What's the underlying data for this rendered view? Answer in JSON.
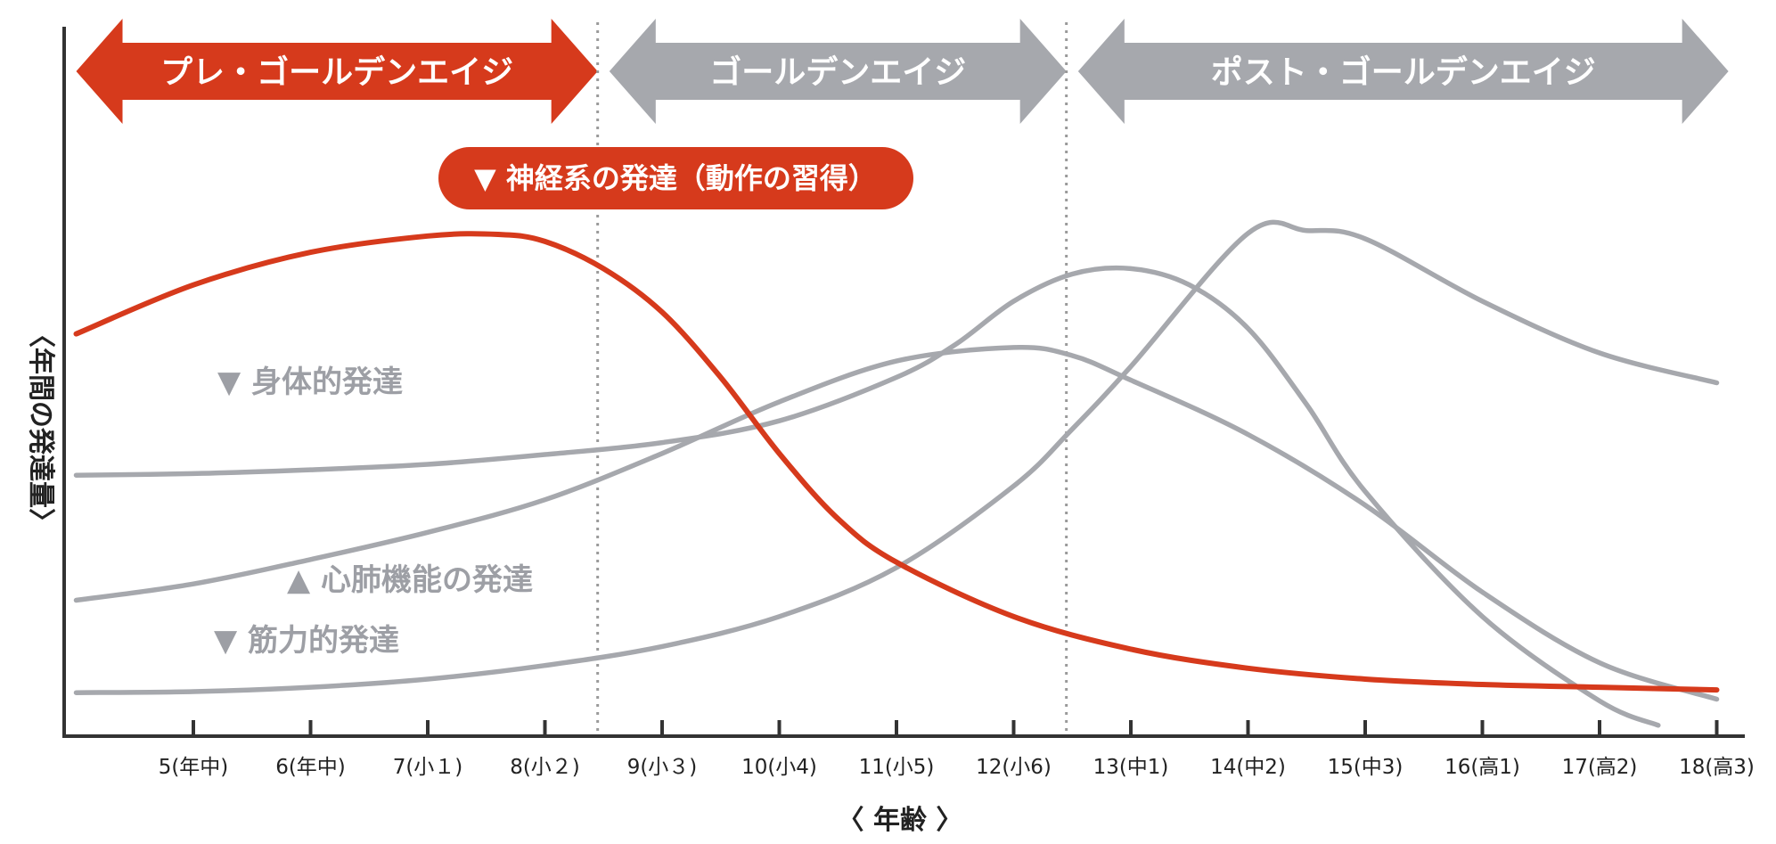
{
  "chart_data": {
    "type": "line",
    "xlabel": "〈 年齢 〉",
    "ylabel": "〈年間の発達量〉",
    "x": [
      4,
      5,
      6,
      7,
      8,
      9,
      10,
      11,
      12,
      13,
      14,
      15,
      16,
      17,
      18
    ],
    "xlim": [
      3.5,
      18.5
    ],
    "ylim": [
      0,
      100
    ],
    "ticks": [
      {
        "x": 5,
        "label": "5(年中)"
      },
      {
        "x": 6,
        "label": "6(年中)"
      },
      {
        "x": 7,
        "label": "7(小１)"
      },
      {
        "x": 8,
        "label": "8(小２)"
      },
      {
        "x": 9,
        "label": "9(小３)"
      },
      {
        "x": 10,
        "label": "10(小4)"
      },
      {
        "x": 11,
        "label": "11(小5)"
      },
      {
        "x": 12,
        "label": "12(小6)"
      },
      {
        "x": 13,
        "label": "13(中1)"
      },
      {
        "x": 14,
        "label": "14(中2)"
      },
      {
        "x": 15,
        "label": "15(中3)"
      },
      {
        "x": 16,
        "label": "16(高1)"
      },
      {
        "x": 17,
        "label": "17(高2)"
      },
      {
        "x": 18,
        "label": "18(高3)"
      }
    ],
    "phases": [
      {
        "label": "プレ・ゴールデンエイジ",
        "x_start": 4,
        "x_end": 8.45,
        "color": "#d63a1c"
      },
      {
        "label": "ゴールデンエイジ",
        "x_start": 8.55,
        "x_end": 12.45,
        "color": "#a6a8ad"
      },
      {
        "label": "ポスト・ゴールデンエイジ",
        "x_start": 12.55,
        "x_end": 18.1,
        "color": "#a6a8ad"
      }
    ],
    "dividers": [
      8.45,
      12.45
    ],
    "series": [
      {
        "name": "神経系の発達（動作の習得）",
        "color": "#d63a1c",
        "x": [
          4,
          5,
          6,
          7,
          7.6,
          8,
          8.5,
          9,
          9.5,
          10,
          10.5,
          11,
          12,
          13,
          14,
          15,
          16,
          17,
          18
        ],
        "y": [
          74,
          83,
          89,
          92,
          92.3,
          91,
          86,
          78,
          66,
          52,
          40,
          32,
          22,
          16,
          12.5,
          10.5,
          9.5,
          9,
          8.5
        ]
      },
      {
        "name": "身体的発達",
        "color": "#a6a8ad",
        "x": [
          4,
          5,
          6,
          7,
          8,
          9,
          10,
          11,
          11.5,
          12,
          12.5,
          13,
          13.5,
          14,
          14.5,
          15,
          16,
          17,
          17.5
        ],
        "y": [
          48,
          48.3,
          49,
          50,
          51.8,
          54,
          58,
          66,
          72,
          80,
          85,
          86,
          83,
          75,
          61,
          45,
          22,
          6.5,
          2
        ]
      },
      {
        "name": "心肺機能の発達",
        "color": "#a6a8ad",
        "x": [
          4,
          5,
          6,
          7,
          8,
          9,
          10,
          11,
          12,
          12.5,
          13,
          14,
          15,
          16,
          17,
          18
        ],
        "y": [
          25,
          28,
          32.5,
          37.5,
          43.5,
          52,
          61.5,
          69,
          71.5,
          70,
          65.5,
          55.5,
          42.5,
          26.5,
          13.5,
          6.8
        ]
      },
      {
        "name": "筋力的発達",
        "color": "#a6a8ad",
        "x": [
          4,
          5,
          6,
          7,
          8,
          9,
          10,
          11,
          12,
          12.5,
          13,
          14,
          14.5,
          15,
          16,
          17,
          18
        ],
        "y": [
          8,
          8.2,
          9,
          10.5,
          13,
          16.5,
          22,
          31,
          46,
          56.5,
          68,
          92.5,
          93,
          91.5,
          80,
          70.5,
          65
        ]
      }
    ],
    "annotations": [
      {
        "text": "▼ 神経系の発達（動作の習得）",
        "series": "神経系の発達（動作の習得）"
      },
      {
        "text": "▼ 身体的発達",
        "series": "身体的発達"
      },
      {
        "text": "▲ 心肺機能の発達",
        "series": "心肺機能の発達"
      },
      {
        "text": "▼ 筋力的発達",
        "series": "筋力的発達"
      }
    ]
  }
}
